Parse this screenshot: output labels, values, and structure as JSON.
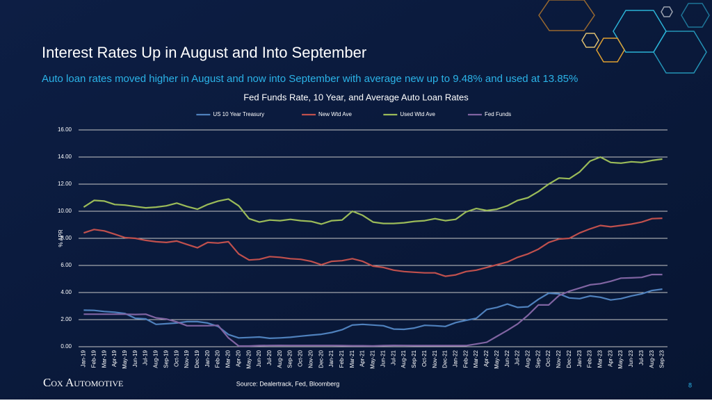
{
  "slide": {
    "title": "Interest Rates Up in August and Into September",
    "subtitle": "Auto loan rates moved higher in August and now into September with average new up to 9.48% and used at 13.85%",
    "source": "Source: Dealertrack, Fed, Bloomberg",
    "logo": "Cox Automotive",
    "page_number": "8"
  },
  "chart_data": {
    "type": "line",
    "title": "Fed Funds Rate, 10 Year, and Average Auto Loan Rates",
    "y_label": "% APR",
    "categories": [
      "Jan-19",
      "Feb-19",
      "Mar-19",
      "Apr-19",
      "May-19",
      "Jun-19",
      "Jul-19",
      "Aug-19",
      "Sep-19",
      "Oct-19",
      "Nov-19",
      "Dec-19",
      "Jan-20",
      "Feb-20",
      "Mar-20",
      "Apr-20",
      "May-20",
      "Jun-20",
      "Jul-20",
      "Aug-20",
      "Sep-20",
      "Oct-20",
      "Nov-20",
      "Dec-20",
      "Jan-21",
      "Feb-21",
      "Mar-21",
      "Apr-21",
      "May-21",
      "Jun-21",
      "Jul-21",
      "Aug-21",
      "Sep-21",
      "Oct-21",
      "Nov-21",
      "Dec-21",
      "Jan-22",
      "Feb-22",
      "Mar-22",
      "Apr-22",
      "May-22",
      "Jun-22",
      "Jul-22",
      "Aug-22",
      "Sep-22",
      "Oct-22",
      "Nov-22",
      "Dec-22",
      "Jan-23",
      "Feb-23",
      "Mar-23",
      "Apr-23",
      "May-23",
      "Jun-23",
      "Jul-23",
      "Aug-23",
      "Sep-23"
    ],
    "series": [
      {
        "name": "US 10 Year Treasury",
        "color": "#4f81bd",
        "values": [
          2.7,
          2.68,
          2.6,
          2.55,
          2.45,
          2.1,
          2.05,
          1.65,
          1.7,
          1.75,
          1.85,
          1.85,
          1.75,
          1.5,
          0.9,
          0.65,
          0.68,
          0.72,
          0.62,
          0.65,
          0.7,
          0.78,
          0.85,
          0.92,
          1.05,
          1.25,
          1.6,
          1.65,
          1.6,
          1.55,
          1.3,
          1.28,
          1.38,
          1.58,
          1.55,
          1.5,
          1.78,
          1.95,
          2.1,
          2.75,
          2.9,
          3.15,
          2.9,
          2.95,
          3.5,
          3.95,
          3.9,
          3.6,
          3.55,
          3.75,
          3.65,
          3.45,
          3.55,
          3.75,
          3.9,
          4.15,
          4.25
        ]
      },
      {
        "name": "New Wtd Ave",
        "color": "#c0504d",
        "values": [
          8.4,
          8.65,
          8.55,
          8.3,
          8.05,
          8.0,
          7.85,
          7.75,
          7.7,
          7.8,
          7.55,
          7.3,
          7.7,
          7.65,
          7.75,
          6.85,
          6.4,
          6.45,
          6.65,
          6.6,
          6.5,
          6.45,
          6.3,
          6.05,
          6.3,
          6.35,
          6.5,
          6.3,
          5.95,
          5.85,
          5.65,
          5.55,
          5.5,
          5.45,
          5.45,
          5.2,
          5.3,
          5.55,
          5.65,
          5.85,
          6.05,
          6.25,
          6.6,
          6.85,
          7.2,
          7.7,
          7.95,
          8.0,
          8.4,
          8.7,
          8.95,
          8.85,
          8.95,
          9.05,
          9.2,
          9.45,
          9.48
        ]
      },
      {
        "name": "Used Wtd Ave",
        "color": "#9bbb59",
        "values": [
          10.3,
          10.8,
          10.75,
          10.5,
          10.45,
          10.35,
          10.25,
          10.3,
          10.4,
          10.6,
          10.35,
          10.15,
          10.5,
          10.75,
          10.9,
          10.4,
          9.45,
          9.2,
          9.35,
          9.3,
          9.4,
          9.3,
          9.25,
          9.05,
          9.3,
          9.35,
          10.0,
          9.7,
          9.2,
          9.1,
          9.1,
          9.15,
          9.25,
          9.3,
          9.45,
          9.3,
          9.4,
          9.95,
          10.2,
          10.05,
          10.15,
          10.4,
          10.8,
          11.0,
          11.45,
          12.0,
          12.45,
          12.4,
          12.9,
          13.7,
          14.0,
          13.6,
          13.55,
          13.65,
          13.6,
          13.75,
          13.85
        ]
      },
      {
        "name": "Fed Funds",
        "color": "#8064a2",
        "values": [
          2.4,
          2.4,
          2.4,
          2.4,
          2.4,
          2.38,
          2.4,
          2.13,
          2.04,
          1.83,
          1.55,
          1.55,
          1.55,
          1.58,
          0.65,
          0.05,
          0.05,
          0.08,
          0.09,
          0.1,
          0.09,
          0.09,
          0.09,
          0.09,
          0.09,
          0.08,
          0.07,
          0.07,
          0.06,
          0.08,
          0.1,
          0.09,
          0.08,
          0.08,
          0.08,
          0.08,
          0.08,
          0.08,
          0.2,
          0.33,
          0.77,
          1.21,
          1.68,
          2.33,
          3.08,
          3.08,
          3.78,
          4.1,
          4.33,
          4.57,
          4.65,
          4.83,
          5.06,
          5.08,
          5.12,
          5.33,
          5.33
        ]
      }
    ],
    "ylim": [
      0,
      16
    ],
    "yticks": [
      {
        "value": 0,
        "label": "0.00"
      },
      {
        "value": 2,
        "label": "2.00"
      },
      {
        "value": 4,
        "label": "4.00"
      },
      {
        "value": 6,
        "label": "6.00"
      },
      {
        "value": 8,
        "label": "8.00"
      },
      {
        "value": 10,
        "label": "10.00"
      },
      {
        "value": 12,
        "label": "12.00"
      },
      {
        "value": 14,
        "label": "14.00"
      },
      {
        "value": 16,
        "label": "16.00"
      }
    ],
    "grid": true,
    "legend": "top"
  }
}
